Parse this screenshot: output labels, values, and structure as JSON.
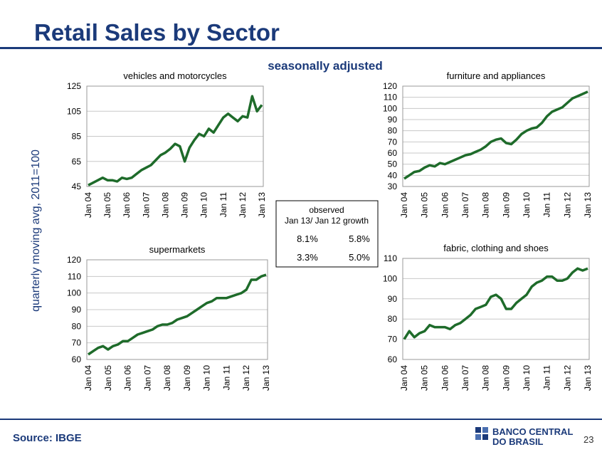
{
  "title": "Retail Sales by Sector",
  "subtitle": "seasonally adjusted",
  "ylabel": "quarterly moving avg, 2011=100",
  "table": {
    "header": [
      "observed",
      "Jan 13/ Jan 12 growth"
    ],
    "rows": [
      [
        "8.1%",
        "5.8%"
      ],
      [
        "3.3%",
        "5.0%"
      ]
    ]
  },
  "source": "Source: IBGE",
  "logo": [
    "BANCO CENTRAL",
    "DO BRASIL"
  ],
  "page_number": "23",
  "chart_data": [
    {
      "type": "line",
      "title": "vehicles and motorcycles",
      "color": "#1e6b2a",
      "categories": [
        "Jan 04",
        null,
        null,
        null,
        "Jan 05",
        null,
        null,
        null,
        "Jan 06",
        null,
        null,
        null,
        "Jan 07",
        null,
        null,
        null,
        "Jan 08",
        null,
        null,
        null,
        "Jan 09",
        null,
        null,
        null,
        "Jan 10",
        null,
        null,
        null,
        "Jan 11",
        null,
        null,
        null,
        "Jan 12",
        null,
        null,
        null,
        "Jan 13"
      ],
      "values": [
        46,
        48,
        50,
        52,
        50,
        50,
        49,
        52,
        51,
        52,
        55,
        58,
        60,
        62,
        66,
        70,
        72,
        75,
        79,
        77,
        65,
        76,
        82,
        87,
        85,
        91,
        88,
        94,
        100,
        103,
        100,
        97,
        101,
        100,
        117,
        105,
        110
      ],
      "ylim": [
        45,
        125
      ],
      "yticks": [
        45,
        65,
        85,
        105,
        125
      ],
      "grid": true
    },
    {
      "type": "line",
      "title": "furniture and appliances",
      "color": "#1e6b2a",
      "categories": [
        "Jan 04",
        null,
        null,
        null,
        "Jan 05",
        null,
        null,
        null,
        "Jan 06",
        null,
        null,
        null,
        "Jan 07",
        null,
        null,
        null,
        "Jan 08",
        null,
        null,
        null,
        "Jan 09",
        null,
        null,
        null,
        "Jan 10",
        null,
        null,
        null,
        "Jan 11",
        null,
        null,
        null,
        "Jan 12",
        null,
        null,
        null,
        "Jan 13"
      ],
      "values": [
        37,
        40,
        43,
        44,
        47,
        49,
        48,
        51,
        50,
        52,
        54,
        56,
        58,
        59,
        61,
        63,
        66,
        70,
        72,
        73,
        69,
        68,
        72,
        77,
        80,
        82,
        83,
        87,
        93,
        97,
        99,
        101,
        105,
        109,
        111,
        113,
        115
      ],
      "ylim": [
        30,
        120
      ],
      "yticks": [
        30,
        40,
        50,
        60,
        70,
        80,
        90,
        100,
        110,
        120
      ],
      "grid": true
    },
    {
      "type": "line",
      "title": "supermarkets",
      "color": "#1e6b2a",
      "categories": [
        "Jan 04",
        null,
        null,
        null,
        "Jan 05",
        null,
        null,
        null,
        "Jan 06",
        null,
        null,
        null,
        "Jan 07",
        null,
        null,
        null,
        "Jan 08",
        null,
        null,
        null,
        "Jan 09",
        null,
        null,
        null,
        "Jan 10",
        null,
        null,
        null,
        "Jan 11",
        null,
        null,
        null,
        "Jan 12",
        null,
        null,
        null,
        "Jan 13"
      ],
      "values": [
        63,
        65,
        67,
        68,
        66,
        68,
        69,
        71,
        71,
        73,
        75,
        76,
        77,
        78,
        80,
        81,
        81,
        82,
        84,
        85,
        86,
        88,
        90,
        92,
        94,
        95,
        97,
        97,
        97,
        98,
        99,
        100,
        102,
        108,
        108,
        110,
        111
      ],
      "ylim": [
        60,
        120
      ],
      "yticks": [
        60,
        70,
        80,
        90,
        100,
        110,
        120
      ],
      "grid": true
    },
    {
      "type": "line",
      "title": "fabric, clothing and shoes",
      "color": "#1e6b2a",
      "categories": [
        "Jan 04",
        null,
        null,
        null,
        "Jan 05",
        null,
        null,
        null,
        "Jan 06",
        null,
        null,
        null,
        "Jan 07",
        null,
        null,
        null,
        "Jan 08",
        null,
        null,
        null,
        "Jan 09",
        null,
        null,
        null,
        "Jan 10",
        null,
        null,
        null,
        "Jan 11",
        null,
        null,
        null,
        "Jan 12",
        null,
        null,
        null,
        "Jan 13"
      ],
      "values": [
        70,
        74,
        71,
        73,
        74,
        77,
        76,
        76,
        76,
        75,
        77,
        78,
        80,
        82,
        85,
        86,
        87,
        91,
        92,
        90,
        85,
        85,
        88,
        90,
        92,
        96,
        98,
        99,
        101,
        101,
        99,
        99,
        100,
        103,
        105,
        104,
        105
      ],
      "ylim": [
        60,
        110
      ],
      "yticks": [
        60,
        70,
        80,
        90,
        100,
        110
      ],
      "grid": true
    }
  ]
}
